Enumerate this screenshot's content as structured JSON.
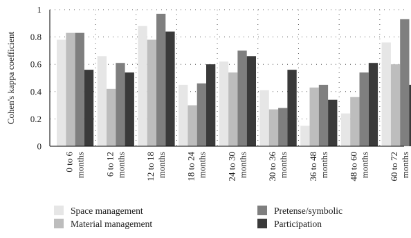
{
  "chart_data": {
    "type": "bar",
    "ylabel": "Cohen's kappa coefficient",
    "ylim": [
      0,
      1
    ],
    "yticks": [
      "0",
      "0.2",
      "0.4",
      "0.6",
      "0.8",
      "1"
    ],
    "grid": "dotted",
    "legend_position": "bottom",
    "categories": [
      [
        "0 to 6",
        "months"
      ],
      [
        "6 to 12",
        "months"
      ],
      [
        "12 to 18",
        "months"
      ],
      [
        "18 to 24",
        "months"
      ],
      [
        "24 to 30",
        "months"
      ],
      [
        "30 to 36",
        "months"
      ],
      [
        "36 to 48",
        "months"
      ],
      [
        "48 to 60",
        "months"
      ],
      [
        "60 to 72",
        "months"
      ]
    ],
    "series": [
      {
        "name": "Space management",
        "color": "#e6e6e6",
        "values": [
          0.78,
          0.66,
          0.88,
          0.45,
          0.62,
          0.41,
          0.15,
          0.24,
          0.76
        ]
      },
      {
        "name": "Material management",
        "color": "#bdbdbd",
        "values": [
          0.83,
          0.42,
          0.78,
          0.3,
          0.54,
          0.27,
          0.43,
          0.36,
          0.6
        ]
      },
      {
        "name": "Pretense/symbolic",
        "color": "#7f7f7f",
        "values": [
          0.83,
          0.61,
          0.97,
          0.46,
          0.7,
          0.28,
          0.45,
          0.54,
          0.93
        ]
      },
      {
        "name": "Participation",
        "color": "#3a3a3a",
        "values": [
          0.56,
          0.54,
          0.84,
          0.6,
          0.66,
          0.56,
          0.34,
          0.61,
          0.45
        ]
      }
    ]
  }
}
